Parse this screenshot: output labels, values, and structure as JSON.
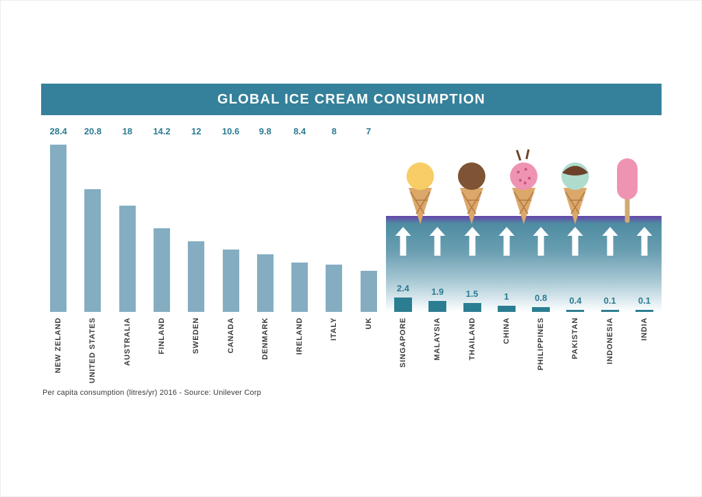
{
  "title_bar": {
    "title": "GLOBAL ICE CREAM CONSUMPTION"
  },
  "footer": {
    "note": "Per capita consumption (litres/yr)  2016 - Source: Unilever Corp"
  },
  "icons": {
    "icecream_illustrations": [
      "yellow-ice-cream-cone",
      "chocolate-ice-cream-cone",
      "strawberry-ice-cream-cone-with-chocolate-sticks",
      "mint-ice-cream-cone",
      "pink-popsicle"
    ],
    "arrow": "up-arrow"
  },
  "chart_data": {
    "type": "bar",
    "title": "GLOBAL ICE CREAM CONSUMPTION",
    "ylabel": "Per capita consumption (litres/yr)",
    "year": "2016",
    "source": "Unilever Corp",
    "categories": [
      "NEW ZELAND",
      "UNITED STATES",
      "AUSTRALIA",
      "FINLAND",
      "SWEDEN",
      "CANADA",
      "DENMARK",
      "IRELAND",
      "ITALY",
      "UK",
      "SINGAPORE",
      "MALAYSIA",
      "THAILAND",
      "CHINA",
      "PHILIPPINES",
      "PAKISTAN",
      "INDONESIA",
      "INDIA"
    ],
    "values": [
      28.4,
      20.8,
      18,
      14.2,
      12,
      10.6,
      9.8,
      8.4,
      8,
      7,
      2.4,
      1.9,
      1.5,
      1,
      0.8,
      0.4,
      0.1,
      0.1
    ],
    "value_labels": [
      "28.4",
      "20.8",
      "18",
      "14.2",
      "12",
      "10.6",
      "9.8",
      "8.4",
      "8",
      "7",
      "2.4",
      "1.9",
      "1.5",
      "1",
      "0.8",
      "0.4",
      "0.1",
      "0.1"
    ],
    "split_index": 10,
    "ylim": [
      0,
      30
    ],
    "grid": false,
    "legend": "none",
    "colors": {
      "bar_left": "#84adc1",
      "bar_right": "#2b7d91",
      "header_bg": "#35809a",
      "value_text": "#2a7b91",
      "label_text": "#3c3c3c",
      "panel_gradient_top": "#4e8ca2",
      "arrow": "#ffffff"
    }
  }
}
